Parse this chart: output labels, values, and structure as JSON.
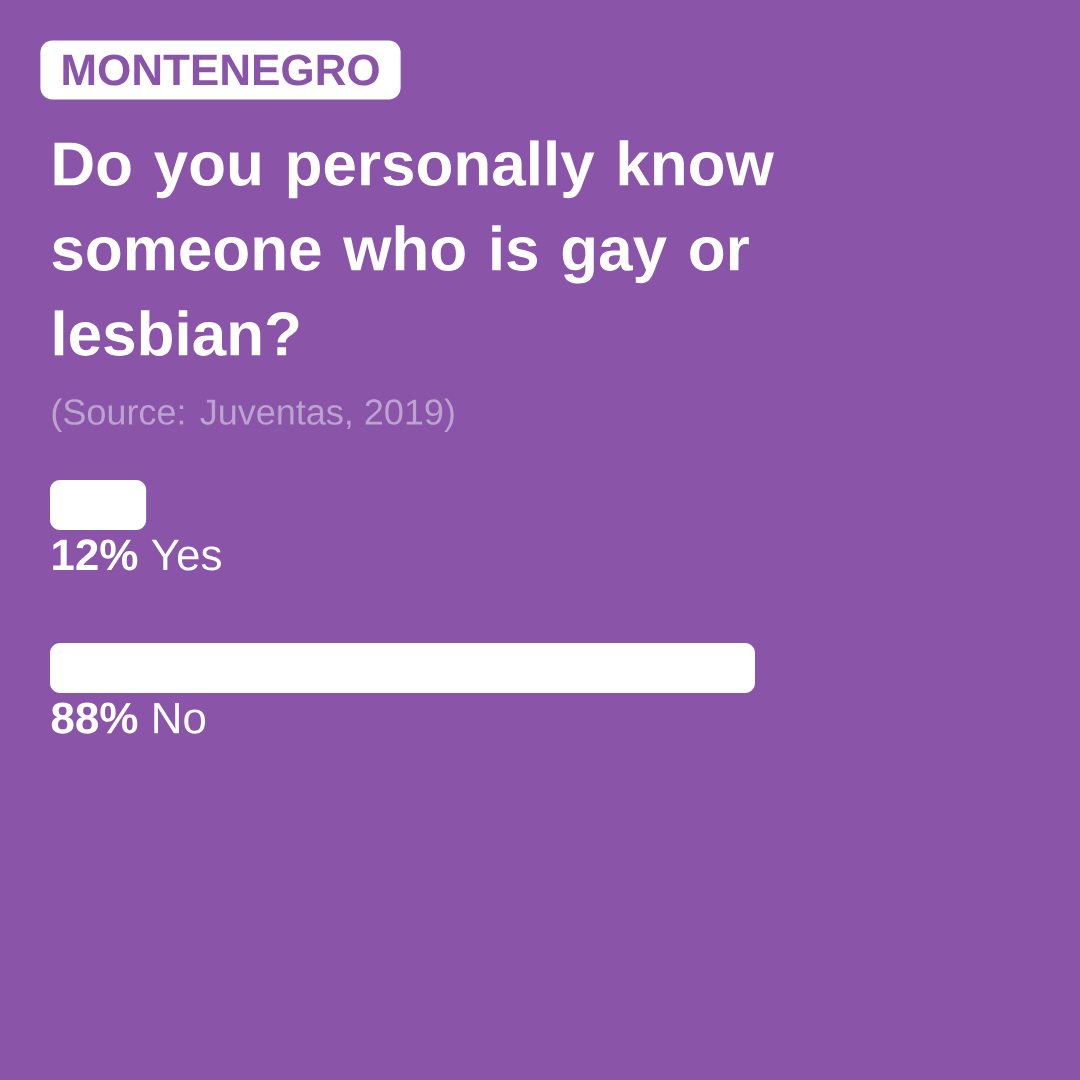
{
  "chart_data": {
    "type": "bar",
    "orientation": "horizontal",
    "subtitle": "MONTENEGRO",
    "title": "Do you personally know someone who is gay or lesbian?",
    "annotations": [
      "(Source: Juventas, 2019)"
    ],
    "categories": [
      "Yes",
      "No"
    ],
    "values": [
      12,
      88
    ],
    "value_labels": [
      "12%",
      "88%"
    ],
    "color": "#ffffff"
  }
}
